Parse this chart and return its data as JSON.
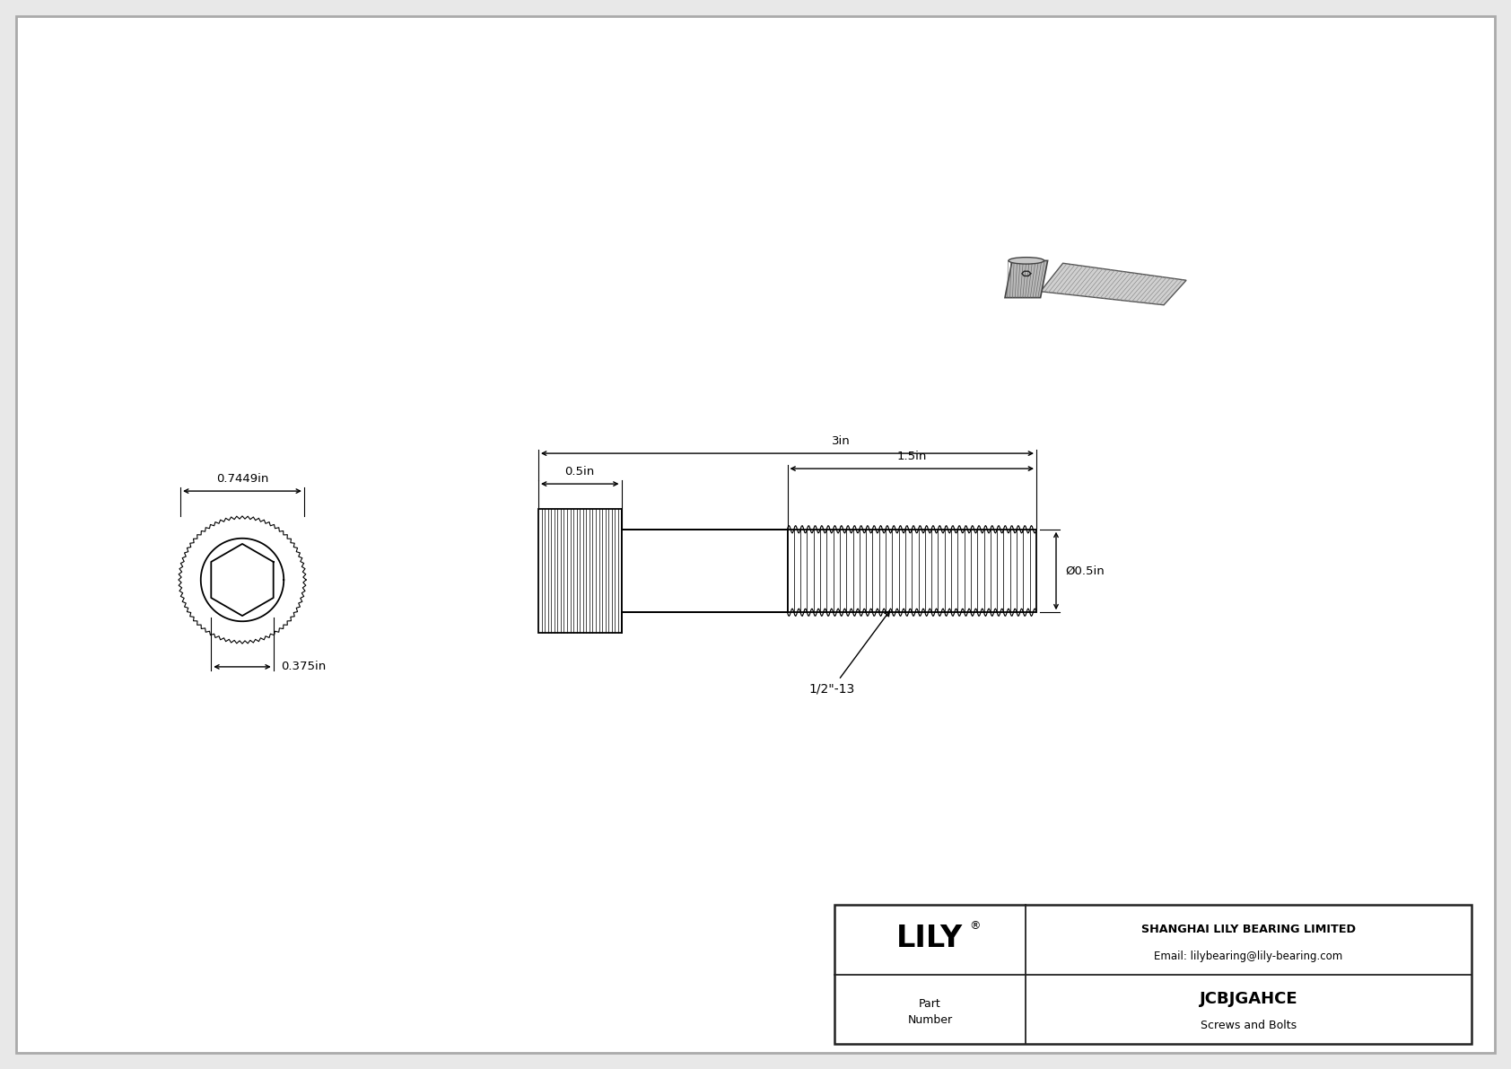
{
  "bg_color": "#e8e8e8",
  "drawing_bg": "#ffffff",
  "line_color": "#000000",
  "title": "JCBJGAHCE",
  "subtitle": "Screws and Bolts",
  "company": "SHANGHAI LILY BEARING LIMITED",
  "email": "Email: lilybearing@lily-bearing.com",
  "logo": "LILY",
  "dim_head_w": "0.7449in",
  "dim_head_h": "0.375in",
  "dim_head_len": "0.5in",
  "dim_total_len": "3in",
  "dim_thread_len": "1.5in",
  "dim_diameter": "Ø0.5in",
  "thread_label": "1/2\"-13"
}
